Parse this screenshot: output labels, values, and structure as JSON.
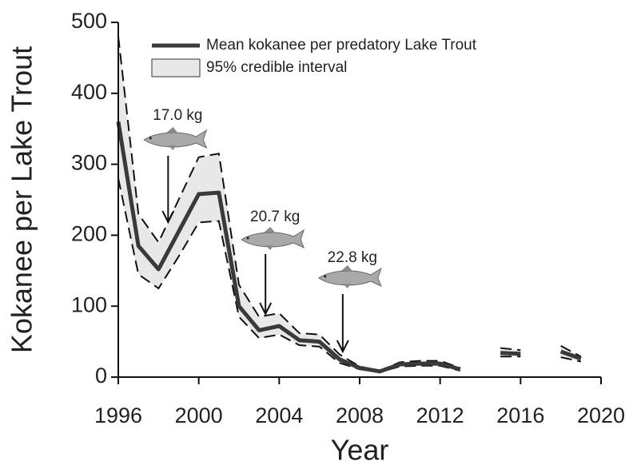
{
  "chart_data": {
    "type": "line",
    "x_label": "Year",
    "y_label": "Kokanee per Lake Trout",
    "x": [
      1996,
      1997,
      1998,
      1999,
      2000,
      2001,
      2002,
      2003,
      2004,
      2005,
      2006,
      2007,
      2008,
      2009,
      2010,
      2011,
      2012,
      2013,
      2014,
      2015,
      2016,
      2017,
      2018,
      2019
    ],
    "series": [
      {
        "name": "Mean kokanee per predatory Lake Trout",
        "color": "#3a3a3a",
        "values": [
          360,
          185,
          152,
          205,
          258,
          260,
          100,
          66,
          72,
          52,
          50,
          25,
          13,
          8,
          18,
          19,
          19,
          11,
          null,
          34,
          33,
          null,
          36,
          26
        ]
      }
    ],
    "interval": {
      "name": "95% credible interval",
      "color": "#e8e8e8",
      "upper": [
        480,
        230,
        190,
        250,
        310,
        315,
        130,
        85,
        90,
        62,
        60,
        32,
        15,
        9,
        21,
        23,
        23,
        13,
        null,
        41,
        38,
        null,
        44,
        29
      ],
      "lower": [
        280,
        145,
        125,
        170,
        218,
        220,
        85,
        55,
        60,
        45,
        43,
        20,
        11,
        7,
        15,
        16,
        16,
        9,
        null,
        29,
        29,
        null,
        28,
        22
      ]
    },
    "annotations": [
      {
        "text": "17.0 kg",
        "x": 1998
      },
      {
        "text": "20.7 kg",
        "x": 2003
      },
      {
        "text": "22.8 kg",
        "x": 2007
      }
    ],
    "xlim": [
      1996,
      2020
    ],
    "xticks": [
      1996,
      2000,
      2004,
      2008,
      2012,
      2016,
      2020
    ],
    "ylim": [
      0,
      500
    ],
    "yticks": [
      0,
      100,
      200,
      300,
      400,
      500
    ]
  }
}
